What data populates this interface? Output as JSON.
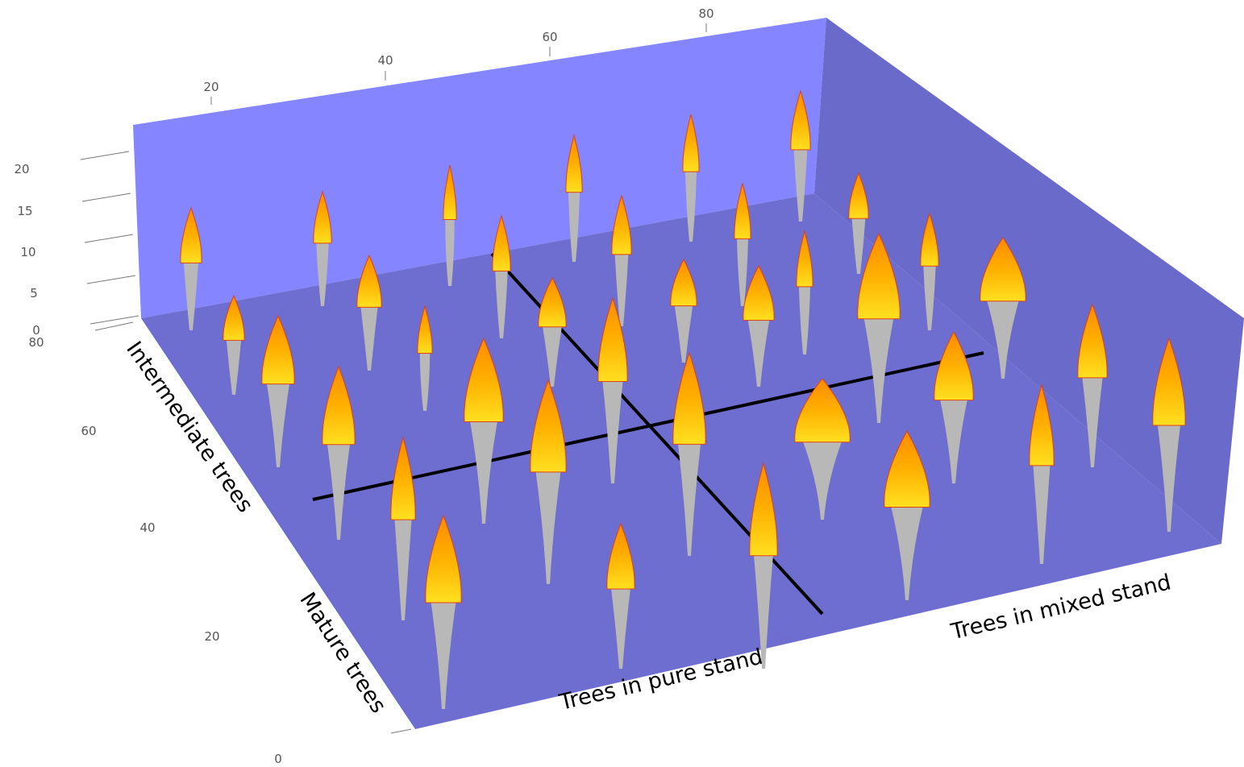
{
  "axes": {
    "top_ticks": [
      20,
      40,
      60,
      80
    ],
    "z_ticks": [
      0,
      5,
      10,
      15,
      20
    ],
    "depth_ticks": [
      0,
      20,
      40,
      60,
      80
    ]
  },
  "labels": {
    "intermediate": "Intermediate trees",
    "mature": "Mature trees",
    "pure": "Trees in pure stand",
    "mixed": "Trees in mixed stand"
  }
}
